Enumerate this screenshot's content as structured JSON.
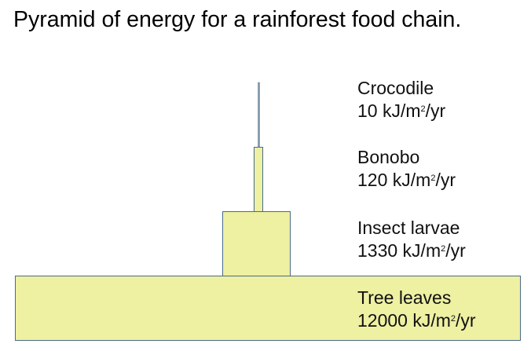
{
  "title": "Pyramid of energy for a rainforest food chain.",
  "colors": {
    "fill": "#eef0a2",
    "stroke": "#4a6a8c",
    "text": "#111111"
  },
  "levels": [
    {
      "organism": "Crocodile",
      "energy": "10",
      "unit_prefix": " kJ/m",
      "unit_sup": "2",
      "unit_suffix": "/yr"
    },
    {
      "organism": "Bonobo",
      "energy": "120",
      "unit_prefix": " kJ/m",
      "unit_sup": "2",
      "unit_suffix": "/yr"
    },
    {
      "organism": "Insect larvae",
      "energy": "1330",
      "unit_prefix": " kJ/m",
      "unit_sup": "2",
      "unit_suffix": "/yr"
    },
    {
      "organism": "Tree leaves",
      "energy": "12000",
      "unit_prefix": " kJ/m",
      "unit_sup": "2",
      "unit_suffix": "/yr"
    }
  ]
}
